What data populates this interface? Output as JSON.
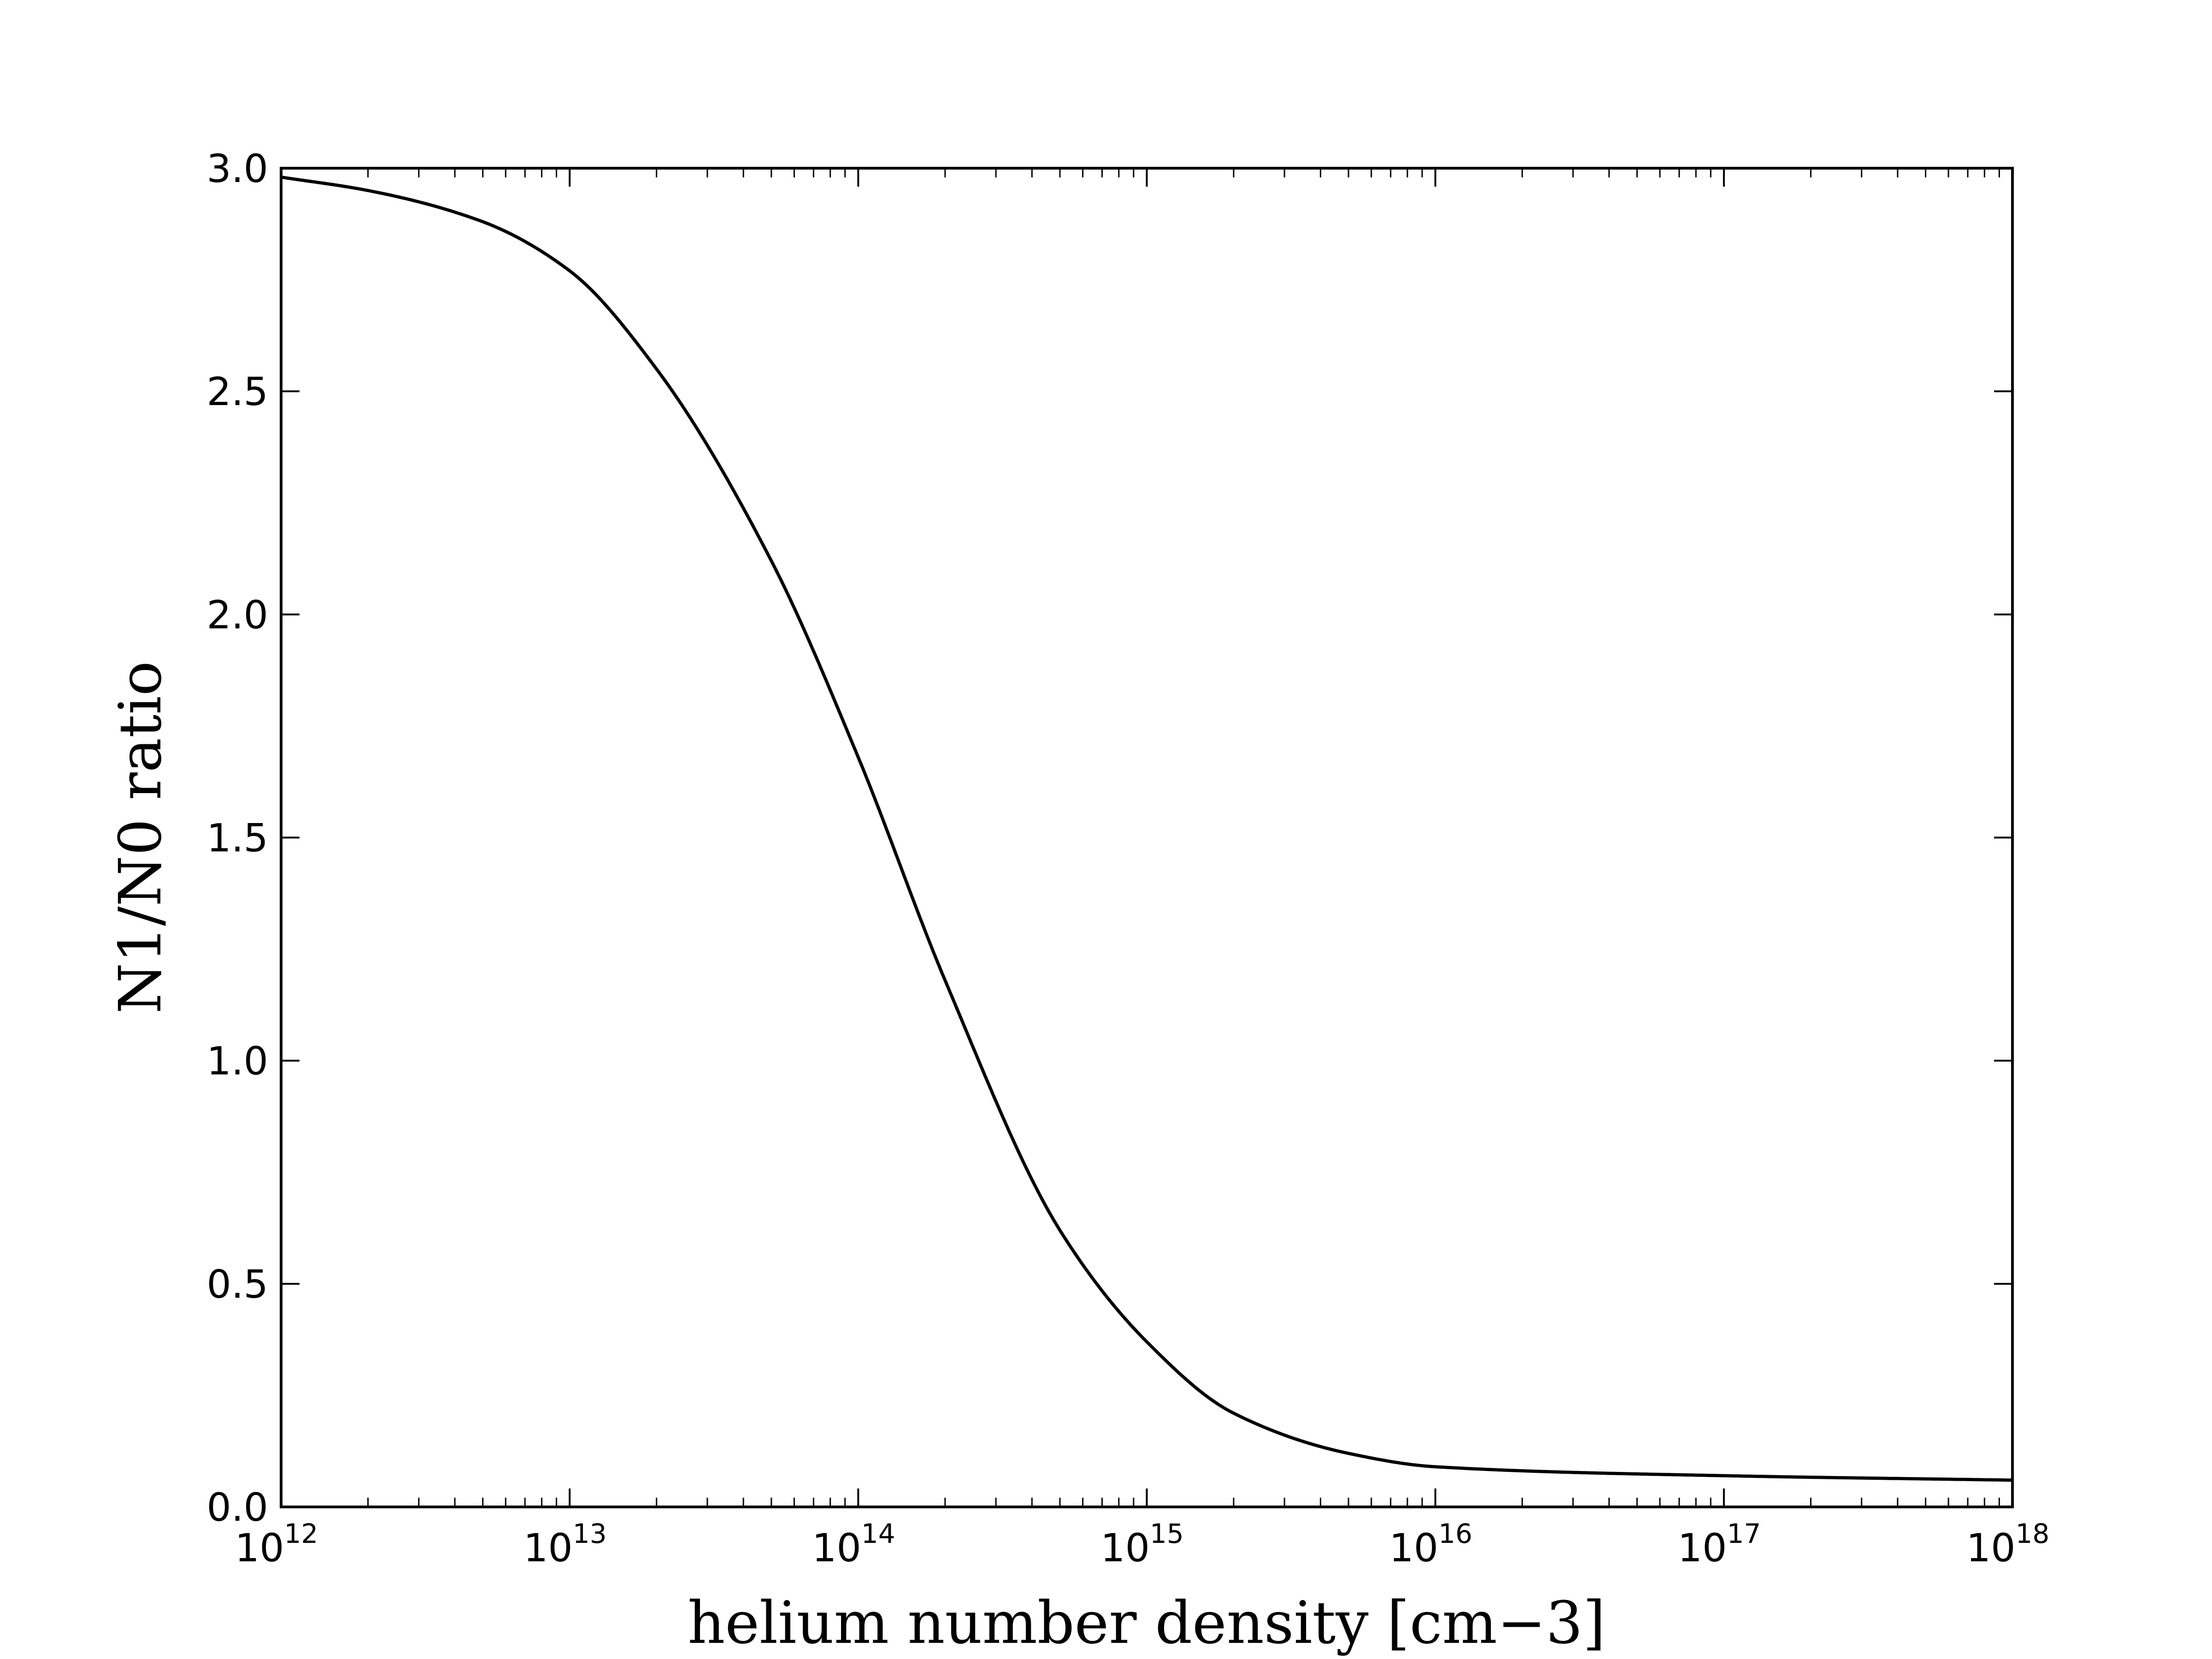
{
  "chart_data": {
    "type": "line",
    "title": "",
    "xlabel": "helium number density [cm−3]",
    "ylabel": "N1/N0 ratio",
    "xscale": "log",
    "xlim": [
      1000000000000.0,
      1e+18
    ],
    "ylim": [
      0.0,
      3.0
    ],
    "grid": false,
    "legend": "none",
    "x_ticks": [
      {
        "base": "10",
        "exp": "12"
      },
      {
        "base": "10",
        "exp": "13"
      },
      {
        "base": "10",
        "exp": "14"
      },
      {
        "base": "10",
        "exp": "15"
      },
      {
        "base": "10",
        "exp": "16"
      },
      {
        "base": "10",
        "exp": "17"
      },
      {
        "base": "10",
        "exp": "18"
      }
    ],
    "y_ticks": [
      "0.0",
      "0.5",
      "1.0",
      "1.5",
      "2.0",
      "2.5",
      "3.0"
    ],
    "series": [
      {
        "color": "#000000",
        "x": [
          1000000000000.0,
          2000000000000.0,
          5000000000000.0,
          10000000000000.0,
          20000000000000.0,
          50000000000000.0,
          100000000000000.0,
          200000000000000.0,
          500000000000000.0,
          1000000000000000.0,
          2000000000000000.0,
          5000000000000000.0,
          1e+16,
          1e+17,
          1e+18
        ],
        "y": [
          2.98,
          2.95,
          2.88,
          2.77,
          2.55,
          2.12,
          1.68,
          1.18,
          0.62,
          0.37,
          0.21,
          0.12,
          0.09,
          0.07,
          0.06
        ]
      }
    ]
  }
}
